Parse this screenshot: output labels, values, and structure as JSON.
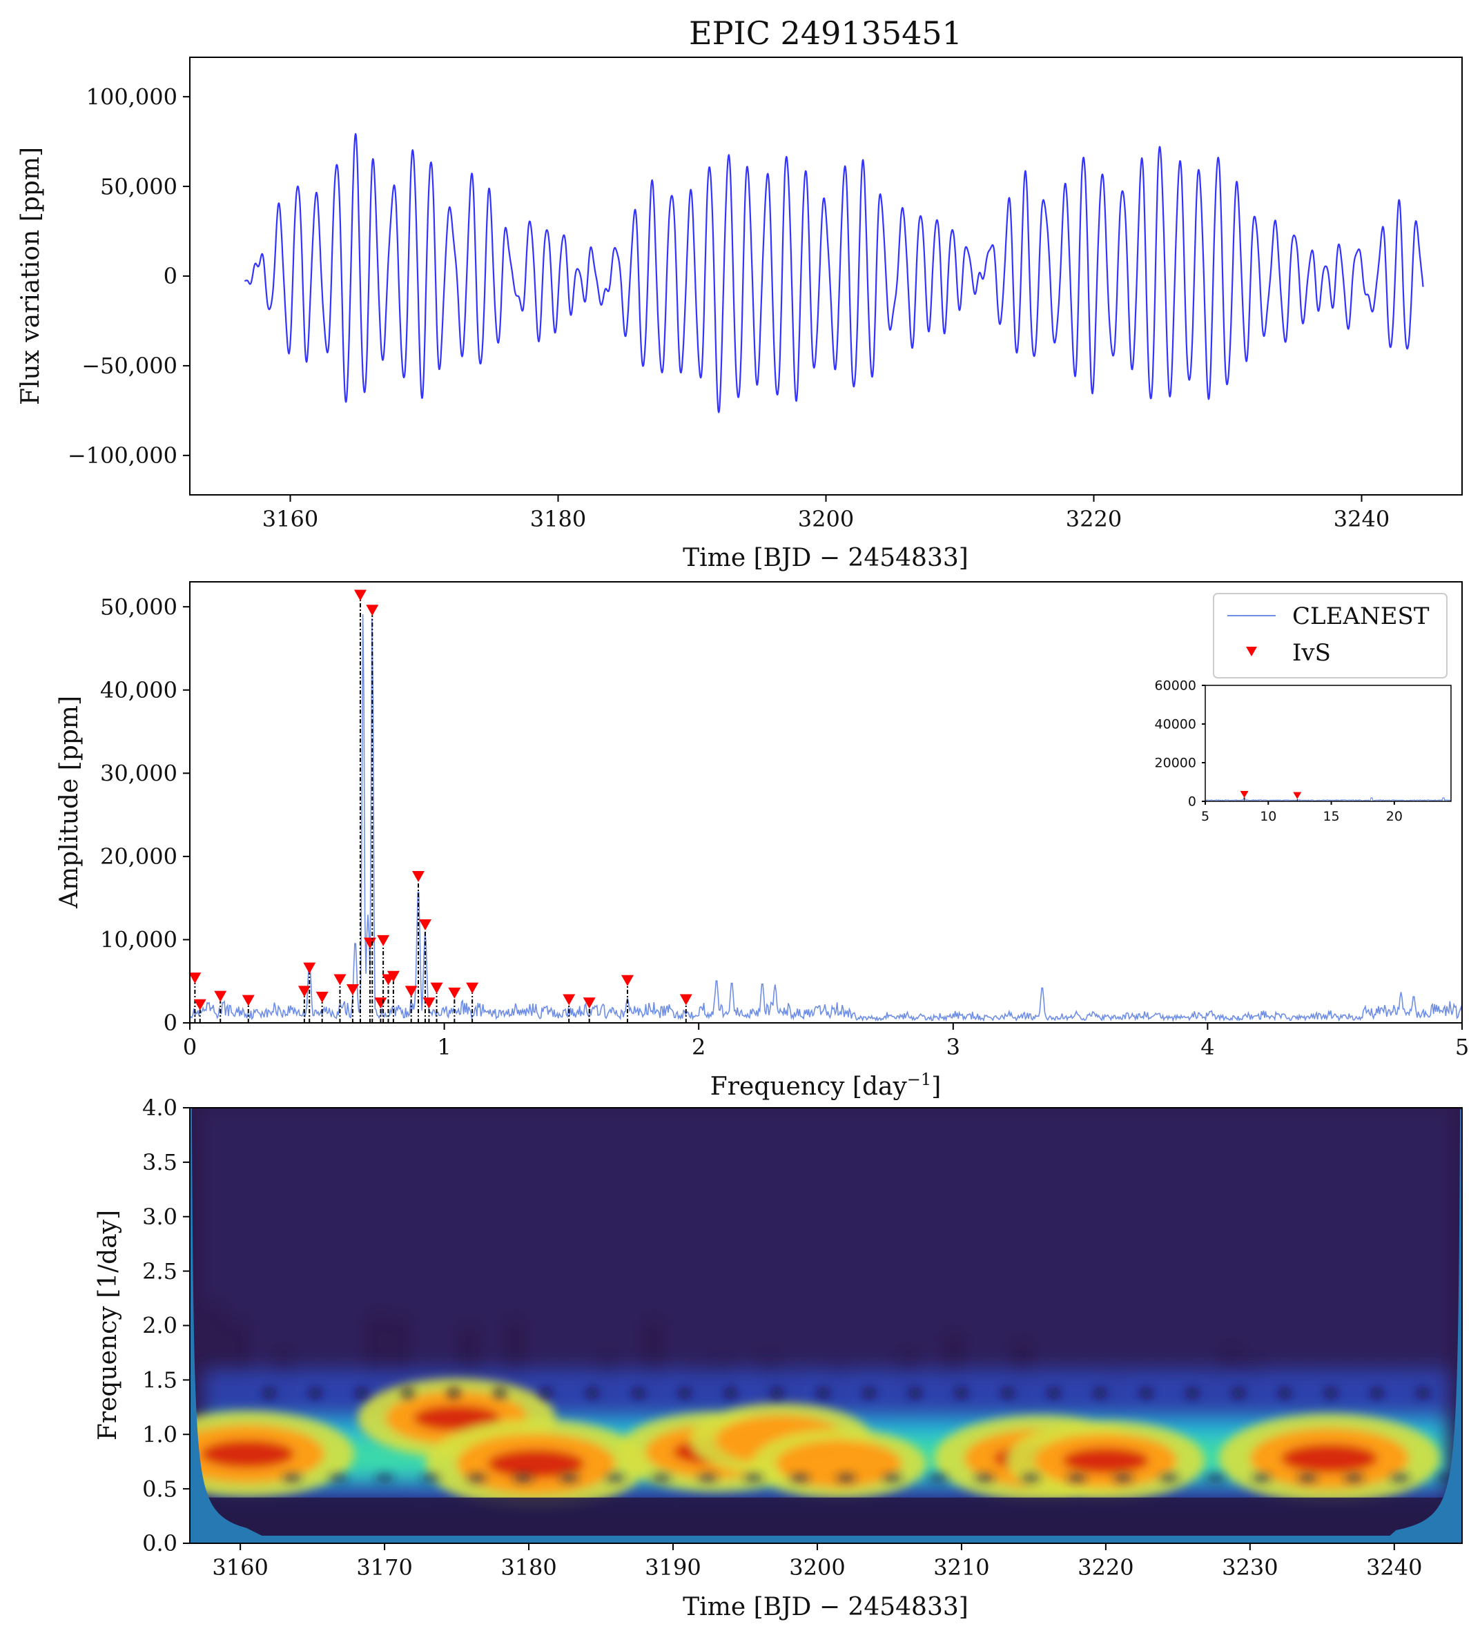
{
  "title": "EPIC 249135451",
  "chart_data": [
    {
      "type": "line",
      "panel": "light-curve",
      "xlabel": "Time [BJD − 2454833]",
      "ylabel": "Flux variation [ppm]",
      "xlim": [
        3152.5,
        3247.5
      ],
      "ylim": [
        -122000,
        122000
      ],
      "xticks": [
        3160,
        3180,
        3200,
        3220,
        3240
      ],
      "yticks": [
        -100000,
        -50000,
        0,
        50000,
        100000
      ],
      "ytick_labels": [
        "−100,000",
        "−50,000",
        "0",
        "50,000",
        "100,000"
      ],
      "series": [
        {
          "color": "#3333ff",
          "x_start": 3156.6,
          "x_end": 3244.6,
          "components": [
            {
              "freq": 0.681,
              "amp": 50500
            },
            {
              "freq": 0.717,
              "amp": 49000
            },
            {
              "freq": 0.898,
              "amp": 17000
            },
            {
              "freq": 0.925,
              "amp": 11000
            },
            {
              "freq": 0.76,
              "amp": 9300
            },
            {
              "freq": 0.708,
              "amp": 9000
            },
            {
              "freq": 0.47,
              "amp": 6000
            },
            {
              "freq": 0.59,
              "amp": 4500
            },
            {
              "freq": 1.72,
              "amp": 4500
            },
            {
              "freq": 0.02,
              "amp": 4800
            },
            {
              "freq": 1.11,
              "amp": 3600
            }
          ]
        }
      ]
    },
    {
      "type": "line",
      "panel": "amplitude-spectrum",
      "xlabel": "Frequency [day−1]",
      "ylabel": "Amplitude [ppm]",
      "xlim": [
        0,
        5
      ],
      "ylim": [
        0,
        53000
      ],
      "xticks": [
        0,
        1,
        2,
        3,
        4,
        5
      ],
      "yticks": [
        0,
        10000,
        20000,
        30000,
        40000,
        50000
      ],
      "ytick_labels": [
        "0",
        "10,000",
        "20,000",
        "30,000",
        "40,000",
        "50,000"
      ],
      "legend": {
        "placement": "top-right",
        "entries": [
          "CLEANEST",
          "IvS"
        ]
      },
      "series": [
        {
          "name": "CLEANEST",
          "color": "#6f8fe6",
          "peaks": [
            {
              "x": 0.681,
              "y": 50500
            },
            {
              "x": 0.717,
              "y": 50000
            },
            {
              "x": 0.7,
              "y": 13000
            },
            {
              "x": 0.65,
              "y": 10000
            },
            {
              "x": 0.898,
              "y": 16500
            },
            {
              "x": 0.925,
              "y": 11000
            },
            {
              "x": 0.47,
              "y": 7500
            },
            {
              "x": 2.07,
              "y": 5300
            },
            {
              "x": 2.13,
              "y": 5000
            },
            {
              "x": 2.25,
              "y": 4900
            },
            {
              "x": 2.3,
              "y": 4600
            },
            {
              "x": 3.35,
              "y": 4400
            },
            {
              "x": 4.76,
              "y": 3700
            },
            {
              "x": 4.81,
              "y": 3300
            },
            {
              "x": 1.72,
              "y": 3000
            }
          ]
        },
        {
          "name": "IvS",
          "color": "#ff0000",
          "marker": "down-triangle",
          "x": [
            0.02,
            0.04,
            0.12,
            0.23,
            0.45,
            0.47,
            0.52,
            0.59,
            0.64,
            0.67,
            0.708,
            0.717,
            0.75,
            0.76,
            0.78,
            0.8,
            0.87,
            0.898,
            0.925,
            0.94,
            0.97,
            1.04,
            1.11,
            1.49,
            1.57,
            1.72,
            1.95
          ],
          "y": [
            4800,
            1600,
            2600,
            2100,
            3200,
            6000,
            2500,
            4600,
            3400,
            50800,
            9000,
            49000,
            1800,
            9300,
            4600,
            5000,
            3200,
            17000,
            11200,
            1800,
            3600,
            3000,
            3600,
            2200,
            1800,
            4500,
            2200
          ]
        }
      ],
      "inset": {
        "xlim": [
          5,
          24.5
        ],
        "ylim": [
          0,
          60000
        ],
        "xticks": [
          5,
          10,
          15,
          20
        ],
        "yticks": [
          0,
          20000,
          40000,
          60000
        ],
        "ytick_labels": [
          "0",
          "20000",
          "40000",
          "60000"
        ],
        "ivs_x": [
          8.1,
          12.3
        ],
        "ivs_y": [
          1800,
          1200
        ]
      }
    },
    {
      "type": "heatmap",
      "panel": "wavelet-power",
      "xlabel": "Time [BJD − 2454833]",
      "ylabel": "Frequency [1/day]",
      "xlim": [
        3156.5,
        3244.7
      ],
      "ylim": [
        0,
        4
      ],
      "xticks": [
        3160,
        3170,
        3180,
        3190,
        3200,
        3210,
        3220,
        3230,
        3240
      ],
      "yticks": [
        0.0,
        0.5,
        1.0,
        1.5,
        2.0,
        2.5,
        3.0,
        3.5,
        4.0
      ],
      "ytick_labels": [
        "0.0",
        "0.5",
        "1.0",
        "1.5",
        "2.0",
        "2.5",
        "3.0",
        "3.5",
        "4.0"
      ],
      "colormap": "jet",
      "cone_color": "#2779b4",
      "hotspots": [
        {
          "t": 3160.5,
          "f": 0.82,
          "power": 0.95
        },
        {
          "t": 3175.0,
          "f": 1.15,
          "power": 0.85
        },
        {
          "t": 3180.5,
          "f": 0.73,
          "power": 1.0
        },
        {
          "t": 3193.0,
          "f": 0.84,
          "power": 0.85
        },
        {
          "t": 3197.5,
          "f": 0.95,
          "power": 0.75
        },
        {
          "t": 3201.5,
          "f": 0.73,
          "power": 0.7
        },
        {
          "t": 3215.5,
          "f": 0.78,
          "power": 0.95
        },
        {
          "t": 3220.0,
          "f": 0.76,
          "power": 0.85
        },
        {
          "t": 3235.5,
          "f": 0.78,
          "power": 1.0
        }
      ]
    }
  ]
}
